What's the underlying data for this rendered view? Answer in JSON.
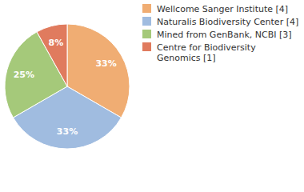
{
  "chart_data": {
    "type": "pie",
    "categories": [
      "Wellcome Sanger Institute [4]",
      "Naturalis Biodiversity Center [4]",
      "Mined from GenBank, NCBI [3]",
      "Centre for Biodiversity Genomics [1]"
    ],
    "values": [
      33,
      33,
      25,
      8
    ],
    "value_labels": [
      "33%",
      "33%",
      "25%",
      "8%"
    ],
    "colors": [
      "#f0ad73",
      "#a0bce0",
      "#a5c97a",
      "#e07b5e"
    ],
    "data_labels": true,
    "legend": "top-right"
  }
}
